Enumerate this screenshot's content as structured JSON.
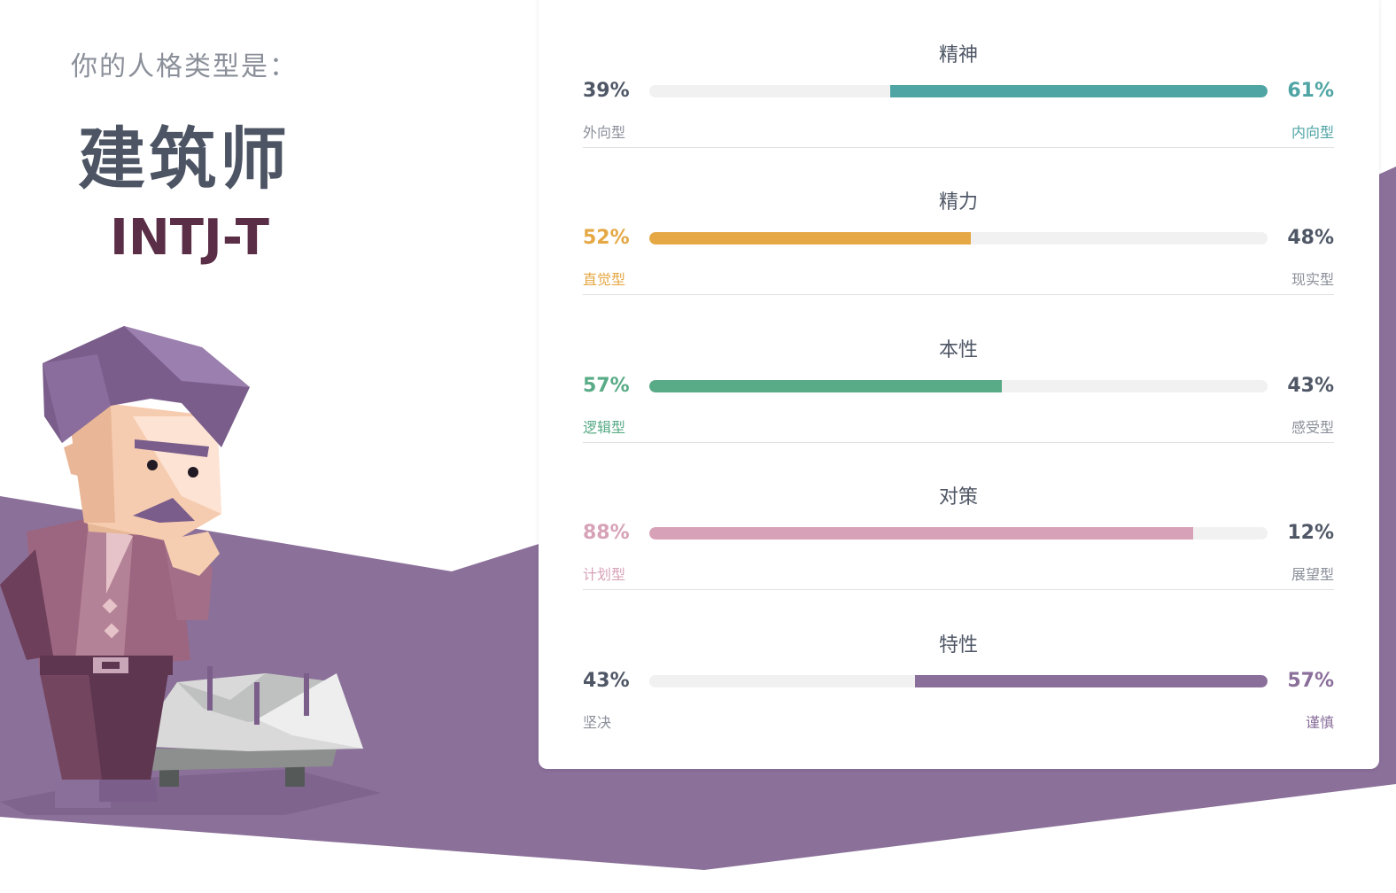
{
  "header": {
    "intro": "你的人格类型是：",
    "type_name": "建筑师",
    "type_code": "INTJ-T"
  },
  "colors": {
    "purple_bg": "#8b7099",
    "title_text": "#4d5564",
    "code_text": "#5a2e46",
    "neutral_text": "#4f5766"
  },
  "traits": [
    {
      "title": "精神",
      "left": {
        "percent": "39%",
        "label": "外向型"
      },
      "right": {
        "percent": "61%",
        "label": "内向型"
      },
      "dominant_side": "right",
      "fill_percent": 61,
      "color": "#4fa4a4"
    },
    {
      "title": "精力",
      "left": {
        "percent": "52%",
        "label": "直觉型"
      },
      "right": {
        "percent": "48%",
        "label": "现实型"
      },
      "dominant_side": "left",
      "fill_percent": 52,
      "color": "#e5a845"
    },
    {
      "title": "本性",
      "left": {
        "percent": "57%",
        "label": "逻辑型"
      },
      "right": {
        "percent": "43%",
        "label": "感受型"
      },
      "dominant_side": "left",
      "fill_percent": 57,
      "color": "#58ab86"
    },
    {
      "title": "对策",
      "left": {
        "percent": "88%",
        "label": "计划型"
      },
      "right": {
        "percent": "12%",
        "label": "展望型"
      },
      "dominant_side": "left",
      "fill_percent": 88,
      "color": "#d7a2b7"
    },
    {
      "title": "特性",
      "left": {
        "percent": "43%",
        "label": "坚决"
      },
      "right": {
        "percent": "57%",
        "label": "谨慎"
      },
      "dominant_side": "right",
      "fill_percent": 57,
      "color": "#8b6f9b"
    }
  ]
}
